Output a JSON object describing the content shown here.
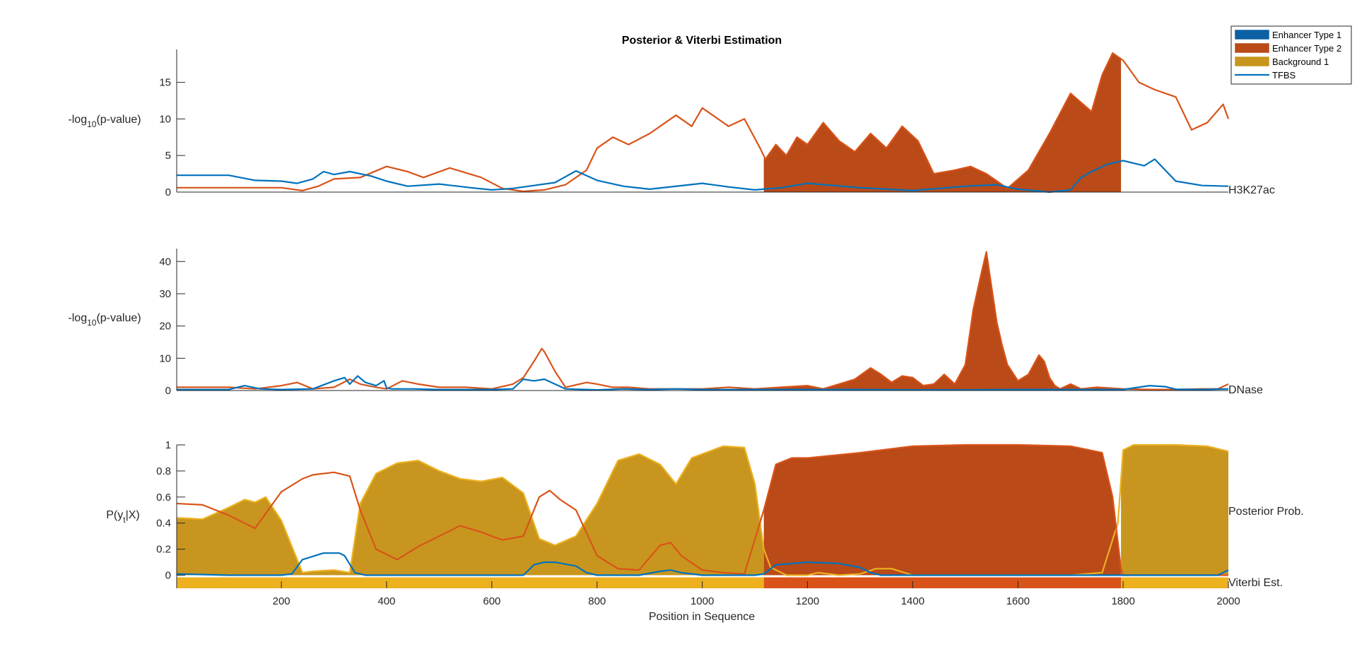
{
  "figure": {
    "title": "Posterior & Viterbi Estimation",
    "xlabel": "Position in Sequence",
    "xlim": [
      1,
      2000
    ],
    "xticks": [
      200,
      400,
      600,
      800,
      1000,
      1200,
      1400,
      1600,
      1800,
      2000
    ]
  },
  "colors": {
    "enhancer1": "#0072BD",
    "enhancer2": "#D95319",
    "enhancer2_fill": "#BA4A17",
    "background1": "#EDB120",
    "background1_fill": "#C8961E",
    "tfbs": "#0072BD",
    "axis": "#262626"
  },
  "legend": {
    "placement": "top-right",
    "entries": [
      {
        "label": "Enhancer Type 1",
        "kind": "patch",
        "color": "#0B61A4"
      },
      {
        "label": "Enhancer Type 2",
        "kind": "patch",
        "color": "#BA4A17"
      },
      {
        "label": "Background 1",
        "kind": "patch",
        "color": "#C8961E"
      },
      {
        "label": "TFBS",
        "kind": "line",
        "color": "#0072BD"
      }
    ]
  },
  "panels": {
    "h3k27ac": {
      "ylabel_main": "-log",
      "ylabel_sub": "10",
      "ylabel_tail": "(p-value)",
      "right_label": "H3K27ac"
    },
    "dnase": {
      "ylabel_main": "-log",
      "ylabel_sub": "10",
      "ylabel_tail": "(p-value)",
      "right_label": "DNase"
    },
    "posterior": {
      "ylabel_main": "P(y",
      "ylabel_sub": "t",
      "ylabel_tail": "|X)",
      "right_label_1": "Posterior Prob.",
      "right_label_2": "Viterbi Est."
    }
  },
  "chart_data": [
    {
      "type": "area",
      "name": "H3K27ac",
      "ylim": [
        0,
        19.5
      ],
      "yticks": [
        0,
        5,
        10,
        15
      ],
      "series": [
        {
          "name": "Enhancer Type 2",
          "color": "#D95319",
          "x": [
            1,
            100,
            200,
            240,
            270,
            300,
            350,
            400,
            440,
            470,
            520,
            580,
            620,
            660,
            700,
            740,
            780,
            800,
            830,
            860,
            900,
            950,
            980,
            1000,
            1020,
            1050,
            1080,
            1110,
            1120,
            1140,
            1160,
            1180,
            1200,
            1230,
            1260,
            1290,
            1320,
            1350,
            1380,
            1410,
            1440,
            1480,
            1510,
            1540,
            1580,
            1620,
            1660,
            1700,
            1740,
            1760,
            1780,
            1800,
            1830,
            1860,
            1900,
            1930,
            1960,
            1990,
            2000
          ],
          "y": [
            0.6,
            0.6,
            0.6,
            0.2,
            0.8,
            1.8,
            2.0,
            3.5,
            2.8,
            2.0,
            3.3,
            2.0,
            0.5,
            0.1,
            0.3,
            1.0,
            3.0,
            6.0,
            7.5,
            6.5,
            8.0,
            10.5,
            9.0,
            11.5,
            10.5,
            9.0,
            10.0,
            6.0,
            4.5,
            6.5,
            5.0,
            7.5,
            6.5,
            9.5,
            7.0,
            5.5,
            8.0,
            6.0,
            9.0,
            7.0,
            2.5,
            3.0,
            3.5,
            2.5,
            0.5,
            3.0,
            8.0,
            13.5,
            11.0,
            16.0,
            19.0,
            18.0,
            15.0,
            14.0,
            13.0,
            8.5,
            9.5,
            12.0,
            10.0
          ]
        },
        {
          "name": "TFBS",
          "color": "#0072BD",
          "x": [
            1,
            100,
            150,
            200,
            230,
            260,
            280,
            300,
            330,
            370,
            400,
            440,
            500,
            560,
            600,
            640,
            680,
            720,
            760,
            800,
            850,
            900,
            1000,
            1050,
            1100,
            1150,
            1200,
            1300,
            1400,
            1500,
            1560,
            1600,
            1660,
            1700,
            1720,
            1740,
            1770,
            1800,
            1840,
            1860,
            1900,
            1950,
            2000
          ],
          "y": [
            2.3,
            2.3,
            1.6,
            1.5,
            1.2,
            1.8,
            2.8,
            2.4,
            2.8,
            2.2,
            1.5,
            0.8,
            1.1,
            0.6,
            0.3,
            0.5,
            0.9,
            1.3,
            2.9,
            1.6,
            0.8,
            0.4,
            1.2,
            0.7,
            0.3,
            0.6,
            1.2,
            0.6,
            0.2,
            0.8,
            1.0,
            0.4,
            0.0,
            0.3,
            2.0,
            2.8,
            3.8,
            4.3,
            3.6,
            4.5,
            1.5,
            0.9,
            0.8
          ]
        }
      ],
      "fill_regions": [
        {
          "state": "Enhancer Type 2",
          "x_start": 1117,
          "x_end": 1796
        }
      ]
    },
    {
      "type": "area",
      "name": "DNase",
      "ylim": [
        0,
        44
      ],
      "yticks": [
        0,
        10,
        20,
        30,
        40
      ],
      "series": [
        {
          "name": "Enhancer Type 2",
          "color": "#D95319",
          "x": [
            1,
            100,
            150,
            200,
            230,
            260,
            300,
            330,
            350,
            380,
            400,
            430,
            460,
            500,
            550,
            600,
            640,
            660,
            680,
            695,
            700,
            720,
            740,
            780,
            800,
            830,
            860,
            900,
            950,
            1000,
            1050,
            1100,
            1150,
            1200,
            1230,
            1260,
            1290,
            1320,
            1340,
            1360,
            1380,
            1400,
            1420,
            1440,
            1460,
            1480,
            1500,
            1515,
            1530,
            1540,
            1550,
            1560,
            1570,
            1580,
            1600,
            1620,
            1640,
            1650,
            1660,
            1670,
            1680,
            1700,
            1720,
            1750,
            1800,
            1850,
            1900,
            1950,
            1980,
            2000
          ],
          "y": [
            1.0,
            1.0,
            0.5,
            1.5,
            2.5,
            0.5,
            1.0,
            3.5,
            2.0,
            1.0,
            0.5,
            3.0,
            2.0,
            1.0,
            1.0,
            0.5,
            2.0,
            4.0,
            9.0,
            13.0,
            12.0,
            6.0,
            1.0,
            2.5,
            2.0,
            1.0,
            1.0,
            0.5,
            0.5,
            0.5,
            1.0,
            0.5,
            1.0,
            1.5,
            0.5,
            2.0,
            3.5,
            7.0,
            5.0,
            2.5,
            4.5,
            4.0,
            1.5,
            2.0,
            5.0,
            2.0,
            8.0,
            25.0,
            36.0,
            43.0,
            32.0,
            21.0,
            14.0,
            8.0,
            3.0,
            5.0,
            11.0,
            9.0,
            4.0,
            1.5,
            0.5,
            2.0,
            0.5,
            1.0,
            0.5,
            0.3,
            0.3,
            0.5,
            0.5,
            2.0
          ]
        },
        {
          "name": "TFBS",
          "color": "#0072BD",
          "x": [
            1,
            100,
            130,
            160,
            200,
            260,
            300,
            320,
            330,
            345,
            360,
            380,
            395,
            400,
            410,
            450,
            500,
            600,
            640,
            660,
            680,
            700,
            720,
            740,
            800,
            850,
            900,
            950,
            1000,
            1100,
            1200,
            1300,
            1400,
            1500,
            1600,
            1700,
            1800,
            1850,
            1880,
            1900,
            1950,
            2000
          ],
          "y": [
            0.3,
            0.3,
            1.5,
            0.5,
            0.3,
            0.5,
            3.0,
            4.0,
            2.0,
            4.5,
            2.5,
            1.5,
            3.0,
            0.8,
            0.5,
            0.5,
            0.3,
            0.3,
            0.5,
            3.5,
            3.0,
            3.5,
            2.0,
            0.5,
            0.2,
            0.5,
            0.3,
            0.5,
            0.3,
            0.3,
            0.3,
            0.3,
            0.2,
            0.2,
            0.3,
            0.3,
            0.3,
            1.5,
            1.2,
            0.4,
            0.3,
            0.5
          ]
        }
      ],
      "fill_regions": [
        {
          "state": "Enhancer Type 2",
          "x_start": 1117,
          "x_end": 1796
        }
      ]
    },
    {
      "type": "area",
      "name": "Posterior",
      "ylim": [
        -0.1,
        1.0
      ],
      "yticks": [
        0,
        0.2,
        0.4,
        0.6,
        0.8,
        1
      ],
      "ytick_labels": [
        "0",
        "0.2",
        "0.4",
        "0.6",
        "0.8",
        "1"
      ],
      "series": [
        {
          "name": "Background 1",
          "color": "#EDB120",
          "x": [
            1,
            50,
            100,
            130,
            150,
            170,
            200,
            240,
            260,
            300,
            330,
            350,
            380,
            420,
            460,
            500,
            540,
            580,
            620,
            660,
            690,
            720,
            760,
            800,
            840,
            880,
            920,
            950,
            980,
            1040,
            1080,
            1100,
            1117,
            1130,
            1160,
            1200,
            1220,
            1260,
            1300,
            1330,
            1360,
            1400,
            1500,
            1600,
            1700,
            1760,
            1790,
            1800,
            1820,
            1860,
            1900,
            1960,
            2000
          ],
          "y": [
            0.44,
            0.43,
            0.52,
            0.58,
            0.56,
            0.6,
            0.42,
            0.02,
            0.03,
            0.04,
            0.02,
            0.55,
            0.78,
            0.86,
            0.88,
            0.8,
            0.74,
            0.72,
            0.75,
            0.63,
            0.28,
            0.23,
            0.3,
            0.55,
            0.88,
            0.93,
            0.85,
            0.7,
            0.9,
            0.99,
            0.98,
            0.7,
            0.2,
            0.06,
            0.0,
            0.0,
            0.02,
            0.0,
            0.01,
            0.05,
            0.05,
            0.0,
            0.0,
            0.0,
            0.0,
            0.02,
            0.4,
            0.96,
            1.0,
            1.0,
            1.0,
            0.99,
            0.95
          ]
        },
        {
          "name": "Enhancer Type 2",
          "color": "#D95319",
          "x": [
            1,
            50,
            100,
            150,
            200,
            240,
            260,
            300,
            330,
            350,
            380,
            420,
            460,
            500,
            540,
            580,
            620,
            660,
            690,
            710,
            730,
            760,
            800,
            840,
            880,
            920,
            940,
            960,
            1000,
            1040,
            1080,
            1117,
            1140,
            1170,
            1200,
            1300,
            1400,
            1500,
            1600,
            1700,
            1760,
            1780,
            1796,
            1800,
            1850,
            1900,
            2000
          ],
          "y": [
            0.55,
            0.54,
            0.46,
            0.36,
            0.64,
            0.74,
            0.77,
            0.79,
            0.76,
            0.5,
            0.2,
            0.12,
            0.22,
            0.3,
            0.38,
            0.33,
            0.27,
            0.3,
            0.6,
            0.65,
            0.58,
            0.5,
            0.15,
            0.05,
            0.04,
            0.23,
            0.25,
            0.15,
            0.04,
            0.02,
            0.01,
            0.5,
            0.85,
            0.9,
            0.9,
            0.94,
            0.99,
            1.0,
            1.0,
            0.99,
            0.94,
            0.6,
            0.05,
            0.0,
            0.0,
            0.0,
            0.0
          ]
        },
        {
          "name": "Enhancer Type 1",
          "color": "#0072BD",
          "x": [
            1,
            100,
            200,
            220,
            240,
            280,
            310,
            320,
            340,
            360,
            400,
            500,
            600,
            660,
            680,
            700,
            720,
            760,
            780,
            800,
            880,
            920,
            940,
            960,
            1000,
            1100,
            1117,
            1140,
            1200,
            1260,
            1300,
            1320,
            1340,
            1400,
            1500,
            1600,
            1700,
            1800,
            1900,
            1980,
            2000
          ],
          "y": [
            0.01,
            0.0,
            0.0,
            0.01,
            0.12,
            0.17,
            0.17,
            0.15,
            0.02,
            0.0,
            0.0,
            0.0,
            0.0,
            0.0,
            0.08,
            0.1,
            0.1,
            0.07,
            0.02,
            0.0,
            0.0,
            0.03,
            0.04,
            0.02,
            0.0,
            0.0,
            0.01,
            0.08,
            0.1,
            0.09,
            0.06,
            0.02,
            0.0,
            0.0,
            0.0,
            0.0,
            0.0,
            0.0,
            0.0,
            0.0,
            0.04
          ]
        }
      ],
      "viterbi": [
        {
          "state": "Background 1",
          "color": "#EDB120",
          "x_start": 1,
          "x_end": 1117
        },
        {
          "state": "Enhancer Type 2",
          "color": "#D95319",
          "x_start": 1117,
          "x_end": 1796
        },
        {
          "state": "Background 1",
          "color": "#EDB120",
          "x_start": 1796,
          "x_end": 2000
        }
      ]
    }
  ]
}
